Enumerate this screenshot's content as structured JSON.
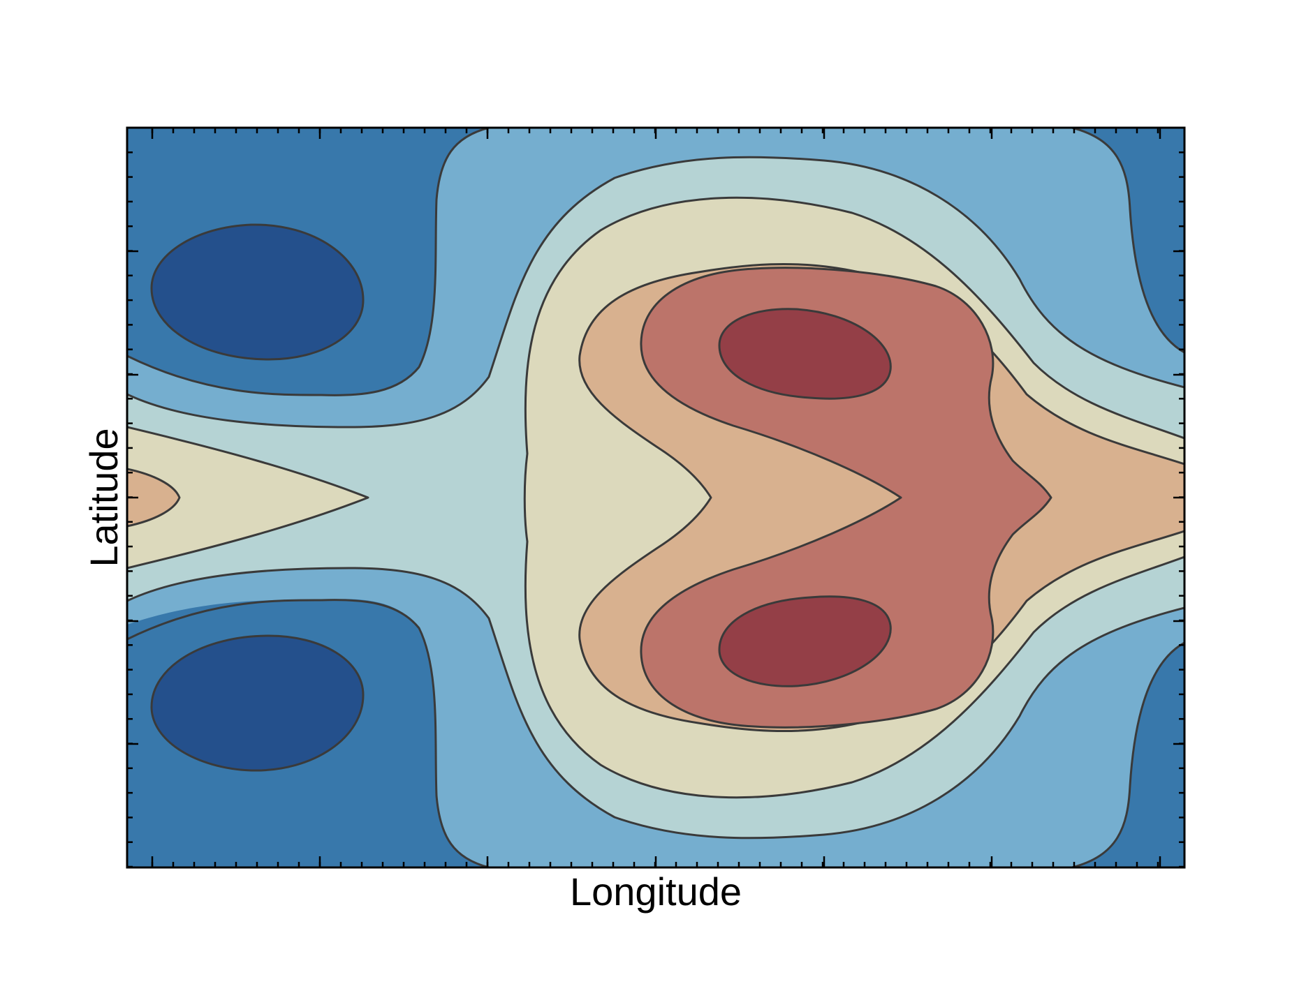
{
  "chart_data": {
    "type": "contour",
    "title": "",
    "xlabel": "Longitude",
    "ylabel": "Latitude",
    "x_tick_labels": [],
    "y_tick_labels": [],
    "grid": false,
    "legend": "none",
    "colormap": "RdYlBu_r (diverging, blue = low, red = high)",
    "level_colors": [
      "#24508c",
      "#3878ab",
      "#75aecf",
      "#b5d3d4",
      "#dcd9bc",
      "#d8b18f",
      "#bc746a",
      "#943f47"
    ],
    "contour_line_color": "#3a3a3a",
    "features": [
      {
        "kind": "minimum",
        "description": "upper-left low (deepest blue)"
      },
      {
        "kind": "minimum",
        "description": "lower-left low (deepest blue)"
      },
      {
        "kind": "maximum",
        "description": "upper-right high (deepest red)"
      },
      {
        "kind": "maximum",
        "description": "lower-right high (deepest red)"
      }
    ]
  }
}
